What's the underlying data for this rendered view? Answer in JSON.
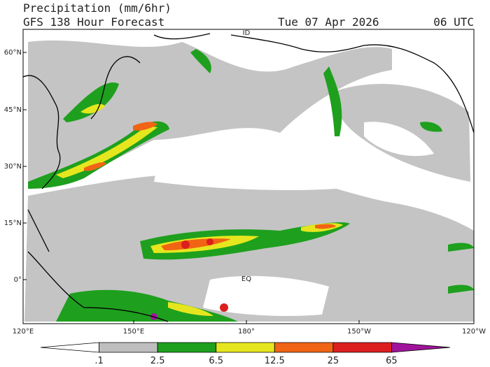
{
  "header": {
    "title": "Precipitation (mm/6hr)",
    "subtitle": "GFS 138 Hour Forecast",
    "date": "Tue 07 Apr 2026",
    "time": "06 UTC"
  },
  "latitude_labels": [
    "60°N",
    "45°N",
    "30°N",
    "15°N",
    "0°"
  ],
  "longitude_labels": [
    "120°E",
    "150°E",
    "180°",
    "150°W",
    "120°W"
  ],
  "map_labels": [
    "ID",
    "EQ"
  ],
  "legend": {
    "labels": [
      ".1",
      "2.5",
      "6.5",
      "12.5",
      "25",
      "65"
    ],
    "colors": [
      "#ffffff",
      "#bebebe",
      "#1ea01e",
      "#e6e61e",
      "#f06414",
      "#dc1e1e",
      "#a0149b"
    ]
  }
}
